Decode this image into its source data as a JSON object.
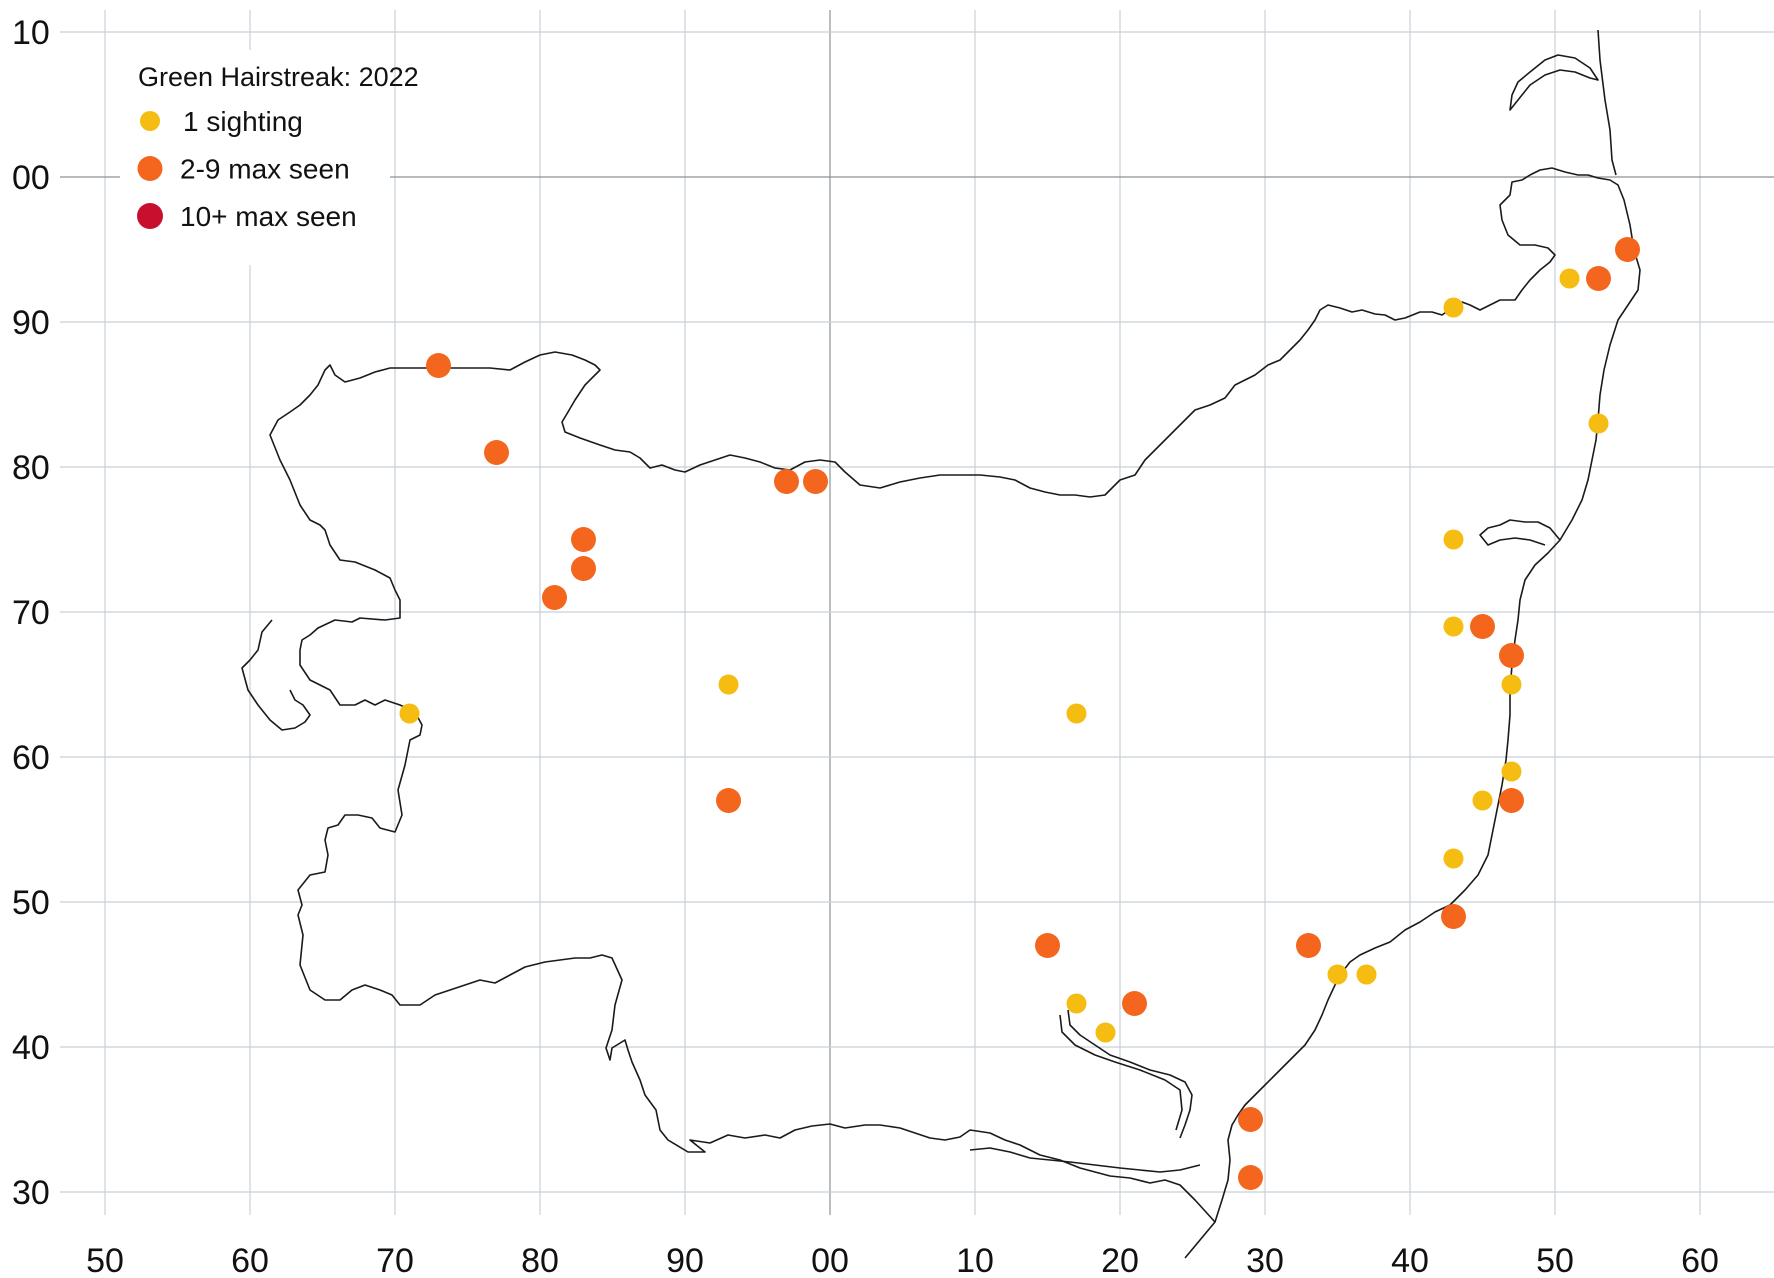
{
  "map": {
    "title": "Green Hairstreak:  2022",
    "colors": {
      "background": "#ffffff",
      "grid": "#c8d0d8",
      "axis_major": "#8b9299",
      "outline": "#1a1a1a",
      "one_sighting": "#f5bd12",
      "two_to_nine": "#f4661d",
      "ten_plus": "#c8102e"
    },
    "legend": [
      {
        "label": "1 sighting",
        "category": "one_sighting"
      },
      {
        "label": "2-9 max seen",
        "category": "two_to_nine"
      },
      {
        "label": "10+ max seen",
        "category": "ten_plus"
      }
    ],
    "x_ticks": [
      "50",
      "60",
      "70",
      "80",
      "90",
      "00",
      "10",
      "20",
      "30",
      "40",
      "50",
      "60"
    ],
    "y_ticks": [
      "10",
      "00",
      "90",
      "80",
      "70",
      "60",
      "50",
      "40",
      "30"
    ],
    "x_range": [
      50,
      160
    ],
    "y_range": [
      30,
      110
    ],
    "sightings": [
      {
        "x": 73,
        "y": 87,
        "category": "two_to_nine"
      },
      {
        "x": 77,
        "y": 81,
        "category": "two_to_nine"
      },
      {
        "x": 83,
        "y": 75,
        "category": "two_to_nine"
      },
      {
        "x": 83,
        "y": 73,
        "category": "two_to_nine"
      },
      {
        "x": 81,
        "y": 71,
        "category": "two_to_nine"
      },
      {
        "x": 71,
        "y": 63,
        "category": "one_sighting"
      },
      {
        "x": 93,
        "y": 65,
        "category": "one_sighting"
      },
      {
        "x": 93,
        "y": 57,
        "category": "two_to_nine"
      },
      {
        "x": 97,
        "y": 79,
        "category": "two_to_nine"
      },
      {
        "x": 99,
        "y": 79,
        "category": "two_to_nine"
      },
      {
        "x": 117,
        "y": 63,
        "category": "one_sighting"
      },
      {
        "x": 115,
        "y": 47,
        "category": "two_to_nine"
      },
      {
        "x": 117,
        "y": 43,
        "category": "one_sighting"
      },
      {
        "x": 119,
        "y": 41,
        "category": "one_sighting"
      },
      {
        "x": 121,
        "y": 43,
        "category": "two_to_nine"
      },
      {
        "x": 129,
        "y": 35,
        "category": "two_to_nine"
      },
      {
        "x": 129,
        "y": 31,
        "category": "two_to_nine"
      },
      {
        "x": 133,
        "y": 47,
        "category": "two_to_nine"
      },
      {
        "x": 135,
        "y": 45,
        "category": "one_sighting"
      },
      {
        "x": 137,
        "y": 45,
        "category": "one_sighting"
      },
      {
        "x": 143,
        "y": 49,
        "category": "two_to_nine"
      },
      {
        "x": 143,
        "y": 53,
        "category": "one_sighting"
      },
      {
        "x": 145,
        "y": 57,
        "category": "one_sighting"
      },
      {
        "x": 147,
        "y": 57,
        "category": "two_to_nine"
      },
      {
        "x": 147,
        "y": 59,
        "category": "one_sighting"
      },
      {
        "x": 147,
        "y": 65,
        "category": "one_sighting"
      },
      {
        "x": 147,
        "y": 67,
        "category": "two_to_nine"
      },
      {
        "x": 143,
        "y": 69,
        "category": "one_sighting"
      },
      {
        "x": 145,
        "y": 69,
        "category": "two_to_nine"
      },
      {
        "x": 143,
        "y": 75,
        "category": "one_sighting"
      },
      {
        "x": 153,
        "y": 83,
        "category": "one_sighting"
      },
      {
        "x": 143,
        "y": 91,
        "category": "one_sighting"
      },
      {
        "x": 151,
        "y": 93,
        "category": "one_sighting"
      },
      {
        "x": 153,
        "y": 93,
        "category": "two_to_nine"
      },
      {
        "x": 155,
        "y": 95,
        "category": "two_to_nine"
      }
    ]
  }
}
